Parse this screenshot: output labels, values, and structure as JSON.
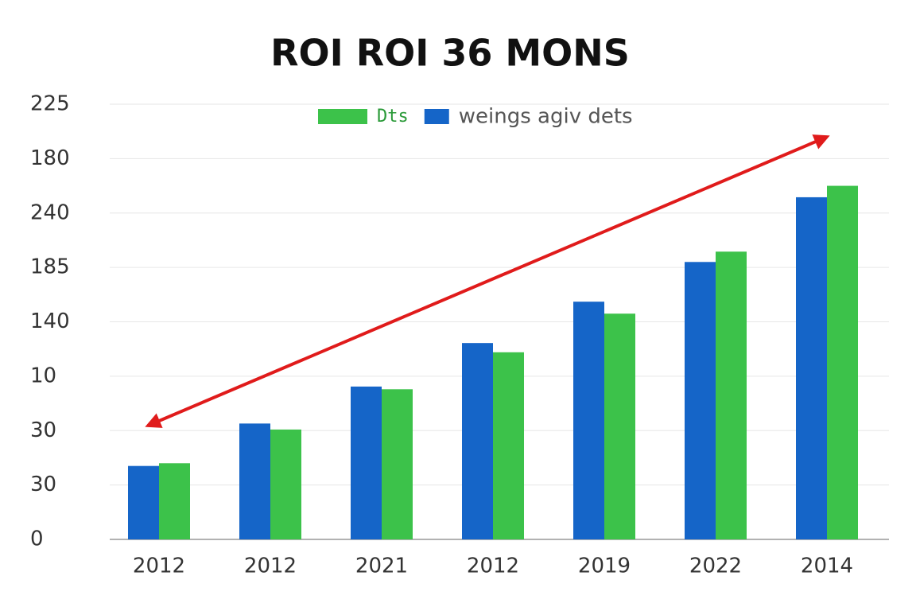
{
  "chart_data": {
    "type": "bar",
    "title": "ROI ROI 36 MONS",
    "categories": [
      "2012",
      "2012",
      "2021",
      "2012",
      "2019",
      "2022",
      "2014"
    ],
    "series": [
      {
        "name": "Dts",
        "color": "#3cc24a",
        "values": [
          1.4,
          2.02,
          2.76,
          3.44,
          4.15,
          5.29,
          6.5
        ]
      },
      {
        "name": "weings agiv dets",
        "color": "#1565c8",
        "values": [
          1.35,
          2.13,
          2.81,
          3.61,
          4.37,
          5.1,
          6.29
        ]
      }
    ],
    "ylim": [
      0,
      8
    ],
    "yticks": [
      {
        "value": 0,
        "label": "0"
      },
      {
        "value": 1,
        "label": "30"
      },
      {
        "value": 2,
        "label": "30"
      },
      {
        "value": 3,
        "label": "10"
      },
      {
        "value": 4,
        "label": "140"
      },
      {
        "value": 5,
        "label": "185"
      },
      {
        "value": 6,
        "label": "240"
      },
      {
        "value": 7,
        "label": "180"
      },
      {
        "value": 8,
        "label": "225"
      }
    ],
    "grid": true
  }
}
